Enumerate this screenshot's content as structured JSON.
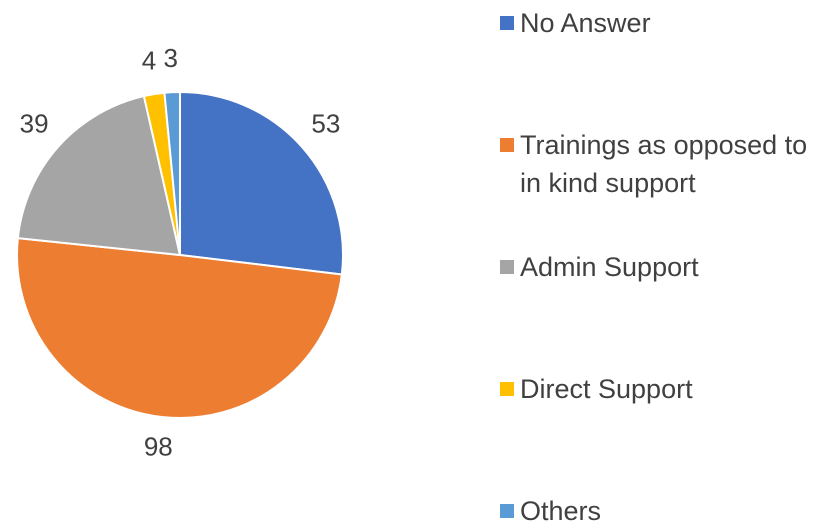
{
  "chart_data": {
    "type": "pie",
    "categories": [
      "No Answer",
      "Trainings as opposed to in kind support",
      "Admin Support",
      "Direct Support",
      "Others"
    ],
    "values": [
      53,
      98,
      39,
      4,
      3
    ],
    "colors": [
      "#4472c4",
      "#ed7d31",
      "#a5a5a5",
      "#ffc000",
      "#5b9bd5"
    ],
    "legend": "right"
  }
}
